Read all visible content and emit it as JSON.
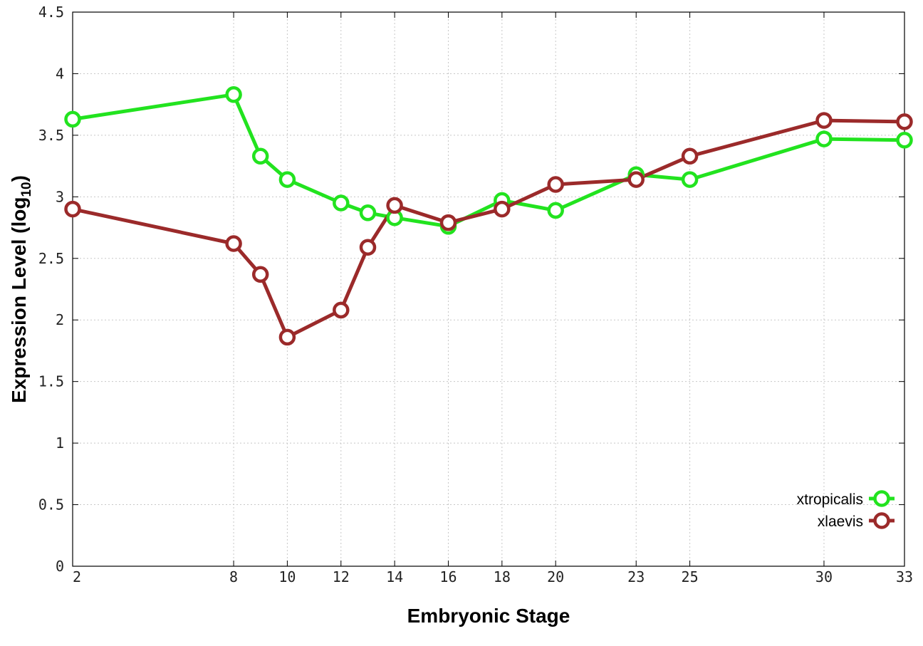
{
  "chart_data": {
    "type": "line",
    "xlabel": "Embryonic Stage",
    "ylabel_main": "Expression Level (log",
    "ylabel_sub": "10",
    "ylabel_close": ")",
    "x": [
      2,
      8,
      9,
      10,
      12,
      13,
      14,
      16,
      18,
      20,
      23,
      25,
      30,
      33
    ],
    "x_tick_labels": [
      "2",
      "8",
      "10",
      "12",
      "14",
      "16",
      "18",
      "20",
      "23",
      "25",
      "30",
      "33"
    ],
    "x_tick_values": [
      2,
      8,
      10,
      12,
      14,
      16,
      18,
      20,
      23,
      25,
      30,
      33
    ],
    "xlim": [
      2,
      33
    ],
    "ylim": [
      0,
      4.5
    ],
    "y_tick_values": [
      0,
      0.5,
      1,
      1.5,
      2,
      2.5,
      3,
      3.5,
      4,
      4.5
    ],
    "y_tick_labels": [
      "0",
      "0.5",
      "1",
      "1.5",
      "2",
      "2.5",
      "3",
      "3.5",
      "4",
      "4.5"
    ],
    "grid": true,
    "legend_position": "bottom-right",
    "series": [
      {
        "name": "xtropicalis",
        "color": "#22e31f",
        "values": [
          3.63,
          3.83,
          3.33,
          3.14,
          2.95,
          2.87,
          2.83,
          2.76,
          2.97,
          2.89,
          3.18,
          3.14,
          3.47,
          3.46
        ]
      },
      {
        "name": "xlaevis",
        "color": "#9b2a2a",
        "values": [
          2.9,
          2.62,
          2.37,
          1.86,
          2.08,
          2.59,
          2.93,
          2.79,
          2.9,
          3.1,
          3.14,
          3.33,
          3.62,
          3.61
        ]
      }
    ]
  }
}
